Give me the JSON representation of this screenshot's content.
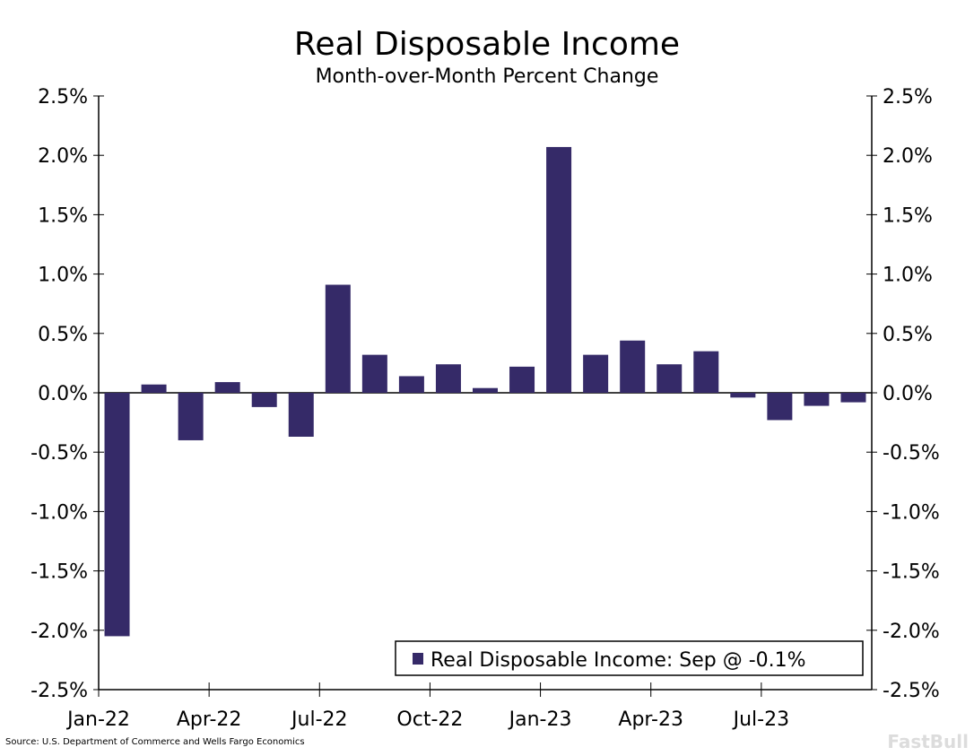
{
  "chart_data": {
    "type": "bar",
    "title": "Real Disposable Income",
    "subtitle": "Month-over-Month Percent Change",
    "xlabel": "",
    "ylabel": "",
    "ylim": [
      -2.5,
      2.5
    ],
    "yticks": [
      "2.5%",
      "2.0%",
      "1.5%",
      "1.0%",
      "0.5%",
      "0.0%",
      "-0.5%",
      "-1.0%",
      "-1.5%",
      "-2.0%",
      "-2.5%"
    ],
    "ytick_values": [
      2.5,
      2.0,
      1.5,
      1.0,
      0.5,
      0.0,
      -0.5,
      -1.0,
      -1.5,
      -2.0,
      -2.5
    ],
    "xtick_labels": [
      "Jan-22",
      "Apr-22",
      "Jul-22",
      "Oct-22",
      "Jan-23",
      "Apr-23",
      "Jul-23"
    ],
    "xtick_indices": [
      0,
      3,
      6,
      9,
      12,
      15,
      18
    ],
    "categories": [
      "Jan-22",
      "Feb-22",
      "Mar-22",
      "Apr-22",
      "May-22",
      "Jun-22",
      "Jul-22",
      "Aug-22",
      "Sep-22",
      "Oct-22",
      "Nov-22",
      "Dec-22",
      "Jan-23",
      "Feb-23",
      "Mar-23",
      "Apr-23",
      "May-23",
      "Jun-23",
      "Jul-23",
      "Aug-23",
      "Sep-23"
    ],
    "series": [
      {
        "name": "Real Disposable Income: Sep @ -0.1%",
        "color": "#352a68",
        "values": [
          -2.05,
          0.07,
          -0.4,
          0.09,
          -0.12,
          -0.37,
          0.91,
          0.32,
          0.14,
          0.24,
          0.04,
          0.22,
          2.07,
          0.32,
          0.44,
          0.24,
          0.35,
          -0.04,
          -0.23,
          -0.11,
          -0.08
        ]
      }
    ],
    "legend": "bottom-right",
    "grid": false
  },
  "source": "Source: U.S. Department of Commerce and Wells Fargo Economics",
  "watermark": "FastBull"
}
